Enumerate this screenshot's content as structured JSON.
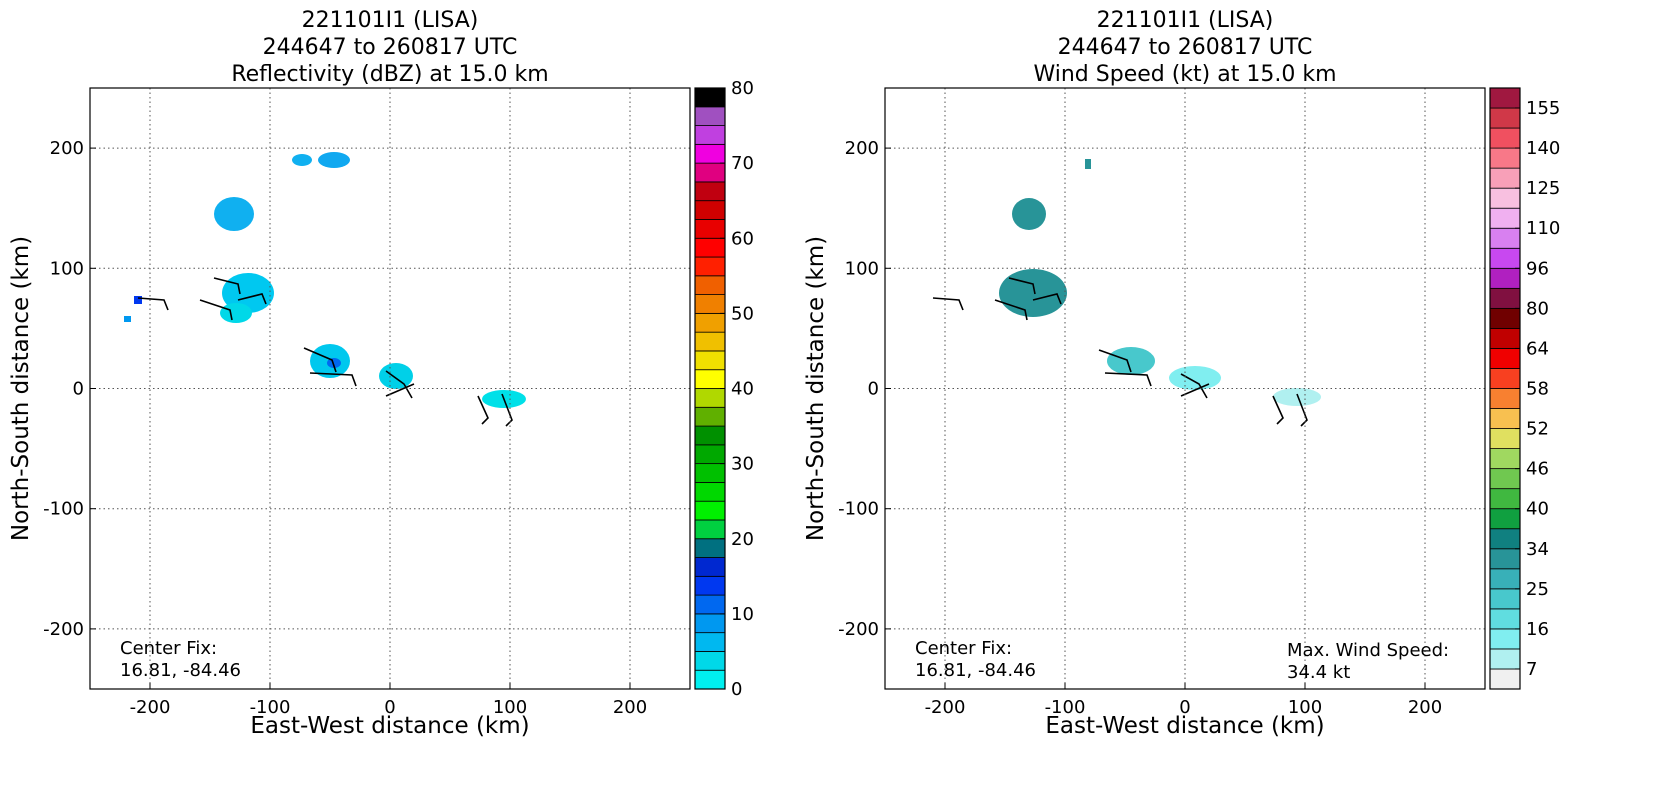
{
  "chart_data": [
    {
      "type": "radar_map",
      "title": [
        "221101I1 (LISA)",
        "244647 to 260817 UTC",
        "Reflectivity (dBZ) at 15.0 km"
      ],
      "x_label": "East-West distance (km)",
      "y_label": "North-South distance (km)",
      "xlim": [
        -250,
        250
      ],
      "ylim": [
        -250,
        250
      ],
      "xticks": [
        -200,
        -100,
        0,
        100,
        200
      ],
      "yticks": [
        -200,
        -100,
        0,
        100,
        200
      ],
      "grid": true,
      "annotations": [
        "Center Fix:",
        "16.81, -84.46"
      ],
      "colorbar": {
        "levels": [
          0,
          2.5,
          5,
          7.5,
          10,
          12.5,
          15,
          17.5,
          20,
          22.5,
          25,
          27.5,
          30,
          32.5,
          35,
          37.5,
          40,
          42.5,
          45,
          47.5,
          50,
          52.5,
          55,
          57.5,
          60,
          62.5,
          65,
          67.5,
          70,
          72.5,
          75,
          77.5,
          80
        ],
        "colors": [
          "#00f0f0",
          "#00d8e8",
          "#00b8f0",
          "#0098f0",
          "#0068f0",
          "#0038f0",
          "#0028d0",
          "#007080",
          "#00d040",
          "#00f000",
          "#00d800",
          "#00c000",
          "#00a800",
          "#009000",
          "#60b000",
          "#b0d800",
          "#ffff00",
          "#f0e000",
          "#f0c000",
          "#f0a000",
          "#f08000",
          "#f06000",
          "#ff2000",
          "#ff0000",
          "#e80000",
          "#d00000",
          "#c00010",
          "#e00080",
          "#f000e0",
          "#c040e0",
          "#a050c0",
          "#503060"
        ],
        "top_color": "#000000",
        "ticks": [
          0,
          10,
          20,
          30,
          40,
          50,
          60,
          70,
          80
        ]
      }
    },
    {
      "type": "radar_map",
      "title": [
        "221101I1 (LISA)",
        "244647 to 260817 UTC",
        "Wind Speed (kt) at 15.0 km"
      ],
      "x_label": "East-West distance (km)",
      "y_label": "North-South distance (km)",
      "xlim": [
        -250,
        250
      ],
      "ylim": [
        -250,
        250
      ],
      "xticks": [
        -200,
        -100,
        0,
        100,
        200
      ],
      "yticks": [
        -200,
        -100,
        0,
        100,
        200
      ],
      "grid": true,
      "annotations": [
        "Center Fix:",
        "16.81, -84.46",
        "Max. Wind Speed:",
        "34.4 kt"
      ],
      "colorbar": {
        "levels": [
          0,
          7,
          11.5,
          16,
          20.5,
          25,
          29.5,
          34,
          37,
          40,
          43,
          46,
          49,
          52,
          55,
          58,
          61,
          64,
          72,
          80,
          88,
          96,
          103,
          110,
          117.5,
          125,
          132.5,
          140,
          147.5,
          155,
          162
        ],
        "colors": [
          "#f0f0f0",
          "#b0f0f0",
          "#80eef0",
          "#60dde0",
          "#48c8cc",
          "#38b0b8",
          "#289498",
          "#108080",
          "#10a040",
          "#40b840",
          "#70c850",
          "#a0d860",
          "#e0e060",
          "#f8c050",
          "#f88030",
          "#f84020",
          "#f00000",
          "#c00000",
          "#700000",
          "#801040",
          "#b020c0",
          "#c848f0",
          "#d880f0",
          "#f0b0f0",
          "#f8c0e0",
          "#f8a0b8",
          "#f87888",
          "#f05060",
          "#d03848",
          "#a01840"
        ],
        "ticks": [
          7,
          16,
          25,
          34,
          40,
          46,
          52,
          58,
          64,
          80,
          96,
          110,
          125,
          140,
          155
        ]
      }
    }
  ]
}
